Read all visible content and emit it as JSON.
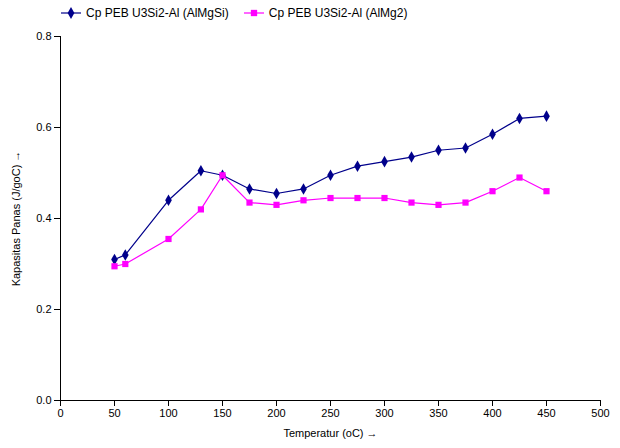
{
  "chart_data": {
    "type": "line",
    "xlabel": "Temperatur (oC)",
    "ylabel": "Kapasitas Panas (J/goC)",
    "x": [
      50,
      60,
      100,
      130,
      150,
      175,
      200,
      225,
      250,
      275,
      300,
      325,
      350,
      375,
      400,
      425,
      450
    ],
    "series": [
      {
        "name": "Cp PEB U3Si2-Al (AlMgSi)",
        "color": "#00008B",
        "marker": "diamond",
        "line_style": "solid",
        "values": [
          0.31,
          0.32,
          0.44,
          0.505,
          0.495,
          0.465,
          0.455,
          0.465,
          0.495,
          0.515,
          0.525,
          0.535,
          0.55,
          0.555,
          0.585,
          0.62,
          0.625
        ]
      },
      {
        "name": "Cp PEB U3Si2-Al (AlMg2)",
        "color": "#FF00FF",
        "marker": "square",
        "line_style": "solid",
        "values": [
          0.295,
          0.3,
          0.355,
          0.42,
          0.495,
          0.435,
          0.43,
          0.44,
          0.445,
          0.445,
          0.445,
          0.435,
          0.43,
          0.435,
          0.46,
          0.49,
          0.46
        ]
      }
    ],
    "xlim": [
      0,
      500
    ],
    "ylim": [
      0,
      0.8
    ],
    "xticks": [
      0,
      50,
      100,
      150,
      200,
      250,
      300,
      350,
      400,
      450,
      500
    ],
    "yticks": [
      {
        "value": 0,
        "label": "0.0"
      },
      0.2,
      0.4,
      0.6,
      0.8
    ],
    "grid": false,
    "legend": "upper left"
  }
}
